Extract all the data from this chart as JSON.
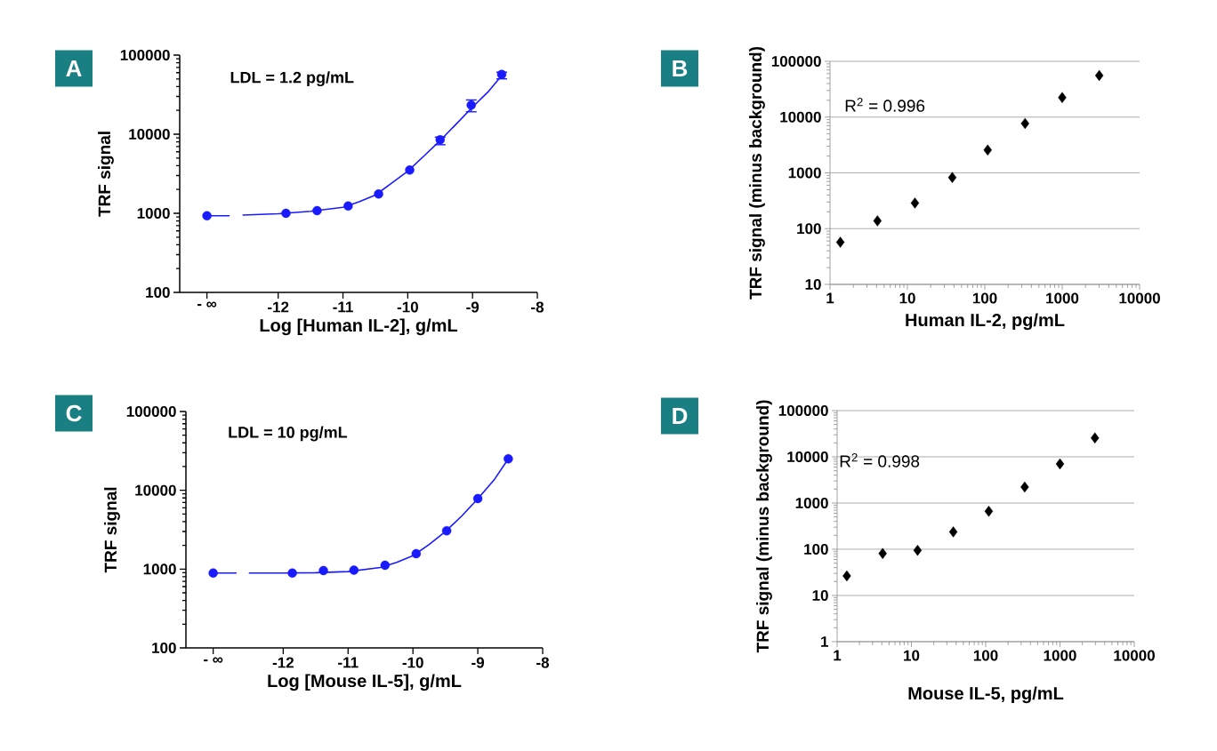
{
  "chart_data": [
    {
      "type": "scatter",
      "xlabel": "Log [Human IL-2], g/mL",
      "ylabel": "TRF signal",
      "annotations": [
        "A",
        "LDL = 1.2 pg/mL"
      ],
      "log": "y",
      "xlim": [
        -13.52,
        -8
      ],
      "xticks": [
        {
          "value": -13.1,
          "label": "- ∞"
        },
        -12,
        -11,
        -10,
        -9,
        -8
      ],
      "ylim": [
        100,
        100000
      ],
      "yticks": [
        100,
        1000,
        10000,
        100000
      ],
      "marker": "circle",
      "series": [
        {
          "type": "line",
          "color": "#1a1aff",
          "marker": "none",
          "x": [
            -13.1,
            -12.75,
            -12.65,
            -12.55,
            -12.0,
            -11.5,
            -11.0,
            -10.75,
            -10.5,
            -10.25,
            -10.0,
            -9.75,
            -9.5,
            -9.25,
            -9.0,
            -8.75,
            -8.55
          ],
          "values": [
            930,
            930,
            null,
            950,
            985,
            1060,
            1190,
            1400,
            1700,
            2400,
            3400,
            5300,
            8300,
            13500,
            22000,
            35000,
            55000
          ]
        },
        {
          "type": "scatter",
          "color": "#1a1aff",
          "x": [
            -13.1,
            -11.88,
            -11.4,
            -10.92,
            -10.45,
            -9.97,
            -9.5,
            -9.02,
            -8.55
          ],
          "values": [
            930,
            1000,
            1080,
            1235,
            1760,
            3520,
            8500,
            23300,
            57000
          ],
          "errors": [
            null,
            null,
            null,
            null,
            null,
            null,
            [
              7360,
              9180
            ],
            [
              19200,
              27100
            ],
            [
              50100,
              60800
            ]
          ]
        }
      ]
    },
    {
      "type": "scatter",
      "xlabel": "Human IL-2, pg/mL",
      "ylabel": "TRF signal (minus background)",
      "annotations": [
        "B",
        "R$^{2}$ = 0.996"
      ],
      "log": "xy",
      "xlim": [
        1,
        10000
      ],
      "xticks": [
        1,
        10,
        100,
        1000,
        10000
      ],
      "ylim": [
        10,
        100000
      ],
      "yticks": [
        10,
        100,
        1000,
        10000,
        100000
      ],
      "grid": "y",
      "marker": "diamond",
      "series": [
        {
          "color": "#000000",
          "x": [
            1.36,
            4.1,
            12.5,
            38,
            109,
            331,
            1000,
            3010
          ],
          "values": [
            57,
            138,
            288,
            827,
            2560,
            7680,
            22400,
            55600
          ]
        }
      ]
    },
    {
      "type": "scatter",
      "xlabel": "Log [Mouse IL-5], g/mL",
      "ylabel": "TRF signal",
      "annotations": [
        "C",
        "LDL = 10 pg/mL"
      ],
      "log": "y",
      "xlim": [
        -13.5,
        -8
      ],
      "xticks": [
        {
          "value": -13.08,
          "label": "- ∞"
        },
        -12,
        -11,
        -10,
        -9,
        -8
      ],
      "ylim": [
        100,
        100000
      ],
      "yticks": [
        100,
        1000,
        10000,
        100000
      ],
      "marker": "circle",
      "series": [
        {
          "type": "line",
          "color": "#1a1aff",
          "marker": "none",
          "x": [
            -13.08,
            -12.72,
            -12.62,
            -12.53,
            -12.0,
            -11.5,
            -11.0,
            -10.5,
            -10.25,
            -10.0,
            -9.75,
            -9.5,
            -9.25,
            -9.0,
            -8.75,
            -8.53
          ],
          "values": [
            890,
            890,
            null,
            890,
            890,
            900,
            930,
            1050,
            1220,
            1480,
            2050,
            3000,
            4700,
            7800,
            13500,
            25100
          ]
        },
        {
          "type": "scatter",
          "color": "#1a1aff",
          "x": [
            -13.08,
            -11.86,
            -11.38,
            -10.91,
            -10.43,
            -9.95,
            -9.48,
            -9.0,
            -8.53
          ],
          "values": [
            890,
            890,
            960,
            970,
            1120,
            1570,
            3070,
            7870,
            25100
          ]
        }
      ]
    },
    {
      "type": "scatter",
      "xlabel": "Mouse IL-5, pg/mL",
      "ylabel": "TRF signal (minus background)",
      "annotations": [
        "D",
        "R$^{2}$ = 0.998"
      ],
      "log": "xy",
      "xlim": [
        1,
        10000
      ],
      "xticks": [
        1,
        10,
        100,
        1000,
        10000
      ],
      "ylim": [
        1,
        100000
      ],
      "yticks": [
        1,
        10,
        100,
        1000,
        10000,
        100000
      ],
      "grid": "y",
      "marker": "diamond",
      "series": [
        {
          "color": "#000000",
          "x": [
            1.35,
            4.1,
            12.1,
            36.6,
            110,
            335,
            1000,
            2950
          ],
          "values": [
            26.5,
            81,
            95,
            238,
            665,
            2220,
            7010,
            25600
          ]
        }
      ]
    }
  ]
}
